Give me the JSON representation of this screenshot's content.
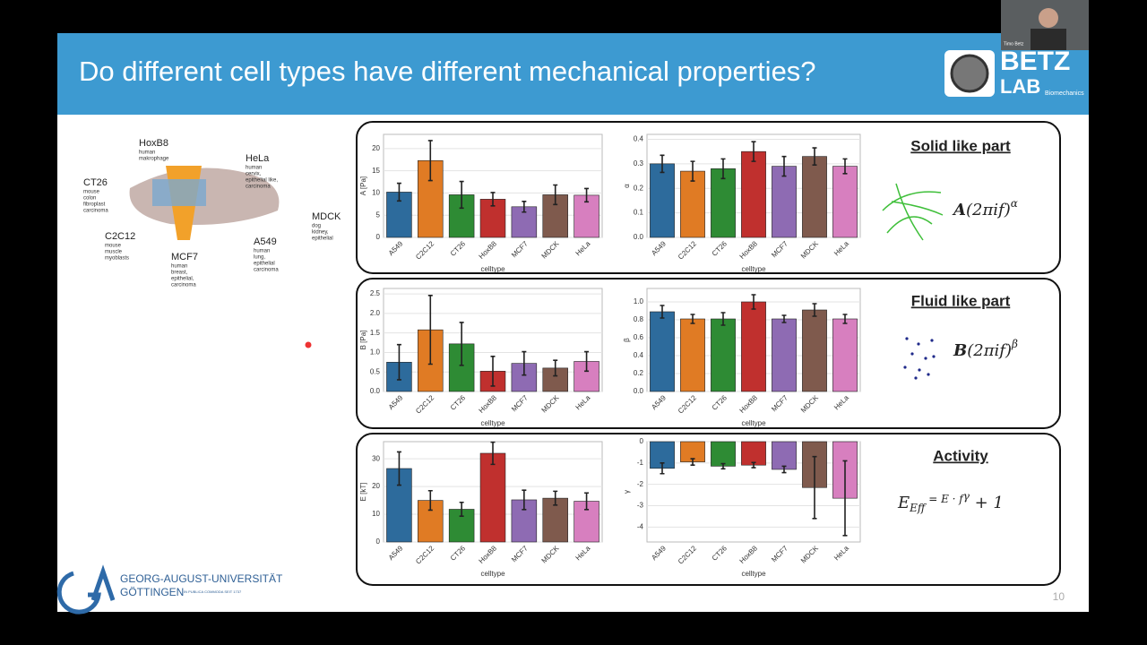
{
  "slide": {
    "title": "Do different cell types have different mechanical properties?",
    "logo": {
      "top": "BETZ",
      "bottom": "LAB",
      "sub": "Biomechanics"
    },
    "webcam_name": "Timo Betz",
    "page_number": "10",
    "university": {
      "line1": "GEORG-AUGUST-UNIVERSITÄT",
      "line2": "GÖTTINGEN",
      "motto": "IN PUBLICA COMMODA SEIT 1737"
    },
    "cells": [
      {
        "name": "HoxB8",
        "lines": [
          "human",
          "makrophage"
        ]
      },
      {
        "name": "HeLa",
        "lines": [
          "human",
          "cervix,",
          "epithelial like,",
          "carcinoma"
        ]
      },
      {
        "name": "CT26",
        "lines": [
          "mouse",
          "colon",
          "fibroplast",
          "carcinoma"
        ]
      },
      {
        "name": "MDCK",
        "lines": [
          "dog",
          "kidney,",
          "epithelial"
        ]
      },
      {
        "name": "C2C12",
        "lines": [
          "mouse",
          "muscle",
          "myoblasts"
        ]
      },
      {
        "name": "A549",
        "lines": [
          "human",
          "lung,",
          "epithelial",
          "carcinoma"
        ]
      },
      {
        "name": "MCF7",
        "lines": [
          "human",
          "breast,",
          "epithelial,",
          "carcinoma"
        ]
      }
    ],
    "panels": [
      {
        "heading": "Solid like part",
        "formula": [
          "A",
          "(2πif)",
          "α"
        ]
      },
      {
        "heading": "Fluid like part",
        "formula": [
          "B",
          "(2πif)",
          "β"
        ]
      },
      {
        "heading": "Activity",
        "formula": [
          "E",
          "Eff",
          " = E  · f",
          "γ",
          " + 1"
        ]
      }
    ]
  },
  "chart_data": [
    {
      "type": "bar",
      "ylabel": "A [Pa]",
      "xlabel": "celltype",
      "categories": [
        "A549",
        "C2C12",
        "CT26",
        "HoxB8",
        "MCF7",
        "MDCK",
        "HeLa"
      ],
      "values": [
        10.2,
        17.3,
        9.6,
        8.6,
        6.9,
        9.6,
        9.5
      ],
      "errors": [
        2,
        4.5,
        3,
        1.5,
        1.2,
        2.2,
        1.5
      ],
      "colors": [
        "#2d6b9c",
        "#e07b24",
        "#2e8b34",
        "#c0302e",
        "#8e6bb3",
        "#7f5a4d",
        "#d77fbf"
      ],
      "ylim": [
        0,
        23.2
      ],
      "yticks": [
        0,
        5,
        10,
        15,
        20
      ],
      "grid": true
    },
    {
      "type": "bar",
      "ylabel": "α",
      "xlabel": "celltype",
      "categories": [
        "A549",
        "C2C12",
        "CT26",
        "HoxB8",
        "MCF7",
        "MDCK",
        "HeLa"
      ],
      "values": [
        0.3,
        0.27,
        0.28,
        0.35,
        0.29,
        0.33,
        0.29
      ],
      "errors": [
        0.035,
        0.04,
        0.04,
        0.04,
        0.04,
        0.035,
        0.03
      ],
      "colors": [
        "#2d6b9c",
        "#e07b24",
        "#2e8b34",
        "#c0302e",
        "#8e6bb3",
        "#7f5a4d",
        "#d77fbf"
      ],
      "ylim": [
        0,
        0.42
      ],
      "yticks": [
        {
          "value": 0,
          "label": "0.0"
        },
        0.1,
        0.2,
        0.3,
        0.4
      ],
      "grid": true
    },
    {
      "type": "bar",
      "ylabel": "B [Pa]",
      "xlabel": "celltype",
      "categories": [
        "A549",
        "C2C12",
        "CT26",
        "HoxB8",
        "MCF7",
        "MDCK",
        "HeLa"
      ],
      "values": [
        0.75,
        1.58,
        1.22,
        0.52,
        0.72,
        0.6,
        0.77
      ],
      "errors": [
        0.45,
        0.88,
        0.55,
        0.38,
        0.3,
        0.2,
        0.25
      ],
      "colors": [
        "#2d6b9c",
        "#e07b24",
        "#2e8b34",
        "#c0302e",
        "#8e6bb3",
        "#7f5a4d",
        "#d77fbf"
      ],
      "ylim": [
        0,
        2.64
      ],
      "yticks": [
        {
          "value": 0,
          "label": "0.0"
        },
        0.5,
        {
          "value": 1,
          "label": "1.0"
        },
        1.5,
        {
          "value": 2,
          "label": "2.0"
        },
        2.5
      ],
      "grid": true
    },
    {
      "type": "bar",
      "ylabel": "β",
      "xlabel": "celltype",
      "categories": [
        "A549",
        "C2C12",
        "CT26",
        "HoxB8",
        "MCF7",
        "MDCK",
        "HeLa"
      ],
      "values": [
        0.89,
        0.81,
        0.81,
        1.0,
        0.81,
        0.91,
        0.81
      ],
      "errors": [
        0.07,
        0.05,
        0.07,
        0.08,
        0.04,
        0.07,
        0.05
      ],
      "colors": [
        "#2d6b9c",
        "#e07b24",
        "#2e8b34",
        "#c0302e",
        "#8e6bb3",
        "#7f5a4d",
        "#d77fbf"
      ],
      "ylim": [
        0,
        1.15
      ],
      "yticks": [
        {
          "value": 0,
          "label": "0.0"
        },
        0.2,
        0.4,
        0.6,
        0.8,
        {
          "value": 1,
          "label": "1.0"
        }
      ],
      "grid": true
    },
    {
      "type": "bar",
      "ylabel": "E [kT]",
      "xlabel": "celltype",
      "categories": [
        "A549",
        "C2C12",
        "CT26",
        "HoxB8",
        "MCF7",
        "MDCK",
        "HeLa"
      ],
      "values": [
        26.5,
        15,
        11.8,
        32,
        15.2,
        15.8,
        14.7
      ],
      "errors": [
        6,
        3.5,
        2.5,
        4,
        3.5,
        2.5,
        3
      ],
      "colors": [
        "#2d6b9c",
        "#e07b24",
        "#2e8b34",
        "#c0302e",
        "#8e6bb3",
        "#7f5a4d",
        "#d77fbf"
      ],
      "ylim": [
        0,
        36.2
      ],
      "yticks": [
        0,
        10,
        20,
        30
      ],
      "grid": true
    },
    {
      "type": "bar",
      "ylabel": "γ",
      "xlabel": "celltype",
      "categories": [
        "A549",
        "C2C12",
        "CT26",
        "HoxB8",
        "MCF7",
        "MDCK",
        "HeLa"
      ],
      "values": [
        -1.25,
        -0.95,
        -1.15,
        -1.1,
        -1.3,
        -2.15,
        -2.65
      ],
      "errors": [
        0.25,
        0.15,
        0.12,
        0.12,
        0.15,
        1.45,
        1.75
      ],
      "colors": [
        "#2d6b9c",
        "#e07b24",
        "#2e8b34",
        "#c0302e",
        "#8e6bb3",
        "#7f5a4d",
        "#d77fbf"
      ],
      "ylim": [
        -4.7,
        0
      ],
      "yticks": [
        0,
        -1,
        -2,
        -3,
        -4
      ],
      "grid": true
    }
  ]
}
